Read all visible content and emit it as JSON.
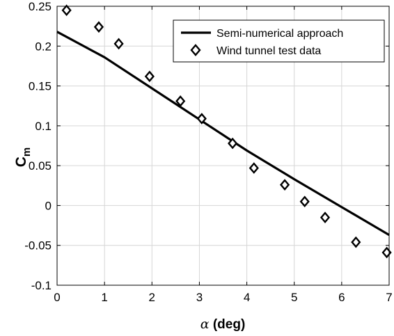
{
  "chart_data": {
    "type": "line",
    "title": "",
    "xlabel": {
      "symbol": "α",
      "rest": " (deg)"
    },
    "ylabel": {
      "main": "C",
      "sub": "m"
    },
    "xlim": [
      0,
      7
    ],
    "ylim": [
      -0.1,
      0.25
    ],
    "xticks": [
      0,
      1,
      2,
      3,
      4,
      5,
      6,
      7
    ],
    "xtick_labels": [
      "0",
      "1",
      "2",
      "3",
      "4",
      "5",
      "6",
      "7"
    ],
    "yticks": [
      -0.1,
      -0.05,
      0,
      0.05,
      0.1,
      0.15,
      0.2,
      0.25
    ],
    "ytick_labels": [
      "-0.1",
      "-0.05",
      "0",
      "0.05",
      "0.1",
      "0.15",
      "0.2",
      "0.25"
    ],
    "grid": true,
    "legend_position": "top-right",
    "series": [
      {
        "name": "Semi-numerical approach",
        "kind": "line",
        "color": "#000000",
        "x": [
          0,
          1,
          2,
          3,
          4,
          5,
          6,
          7
        ],
        "y": [
          0.218,
          0.186,
          0.147,
          0.108,
          0.069,
          0.033,
          -0.002,
          -0.037
        ]
      },
      {
        "name": "Wind tunnel test data",
        "kind": "scatter",
        "marker": "diamond",
        "color": "#000000",
        "x": [
          0.2,
          0.88,
          1.3,
          1.95,
          2.6,
          3.05,
          3.7,
          4.15,
          4.8,
          5.22,
          5.65,
          6.3,
          6.95
        ],
        "y": [
          0.245,
          0.224,
          0.203,
          0.162,
          0.131,
          0.109,
          0.078,
          0.047,
          0.026,
          0.005,
          -0.015,
          -0.046,
          -0.059
        ]
      }
    ]
  }
}
